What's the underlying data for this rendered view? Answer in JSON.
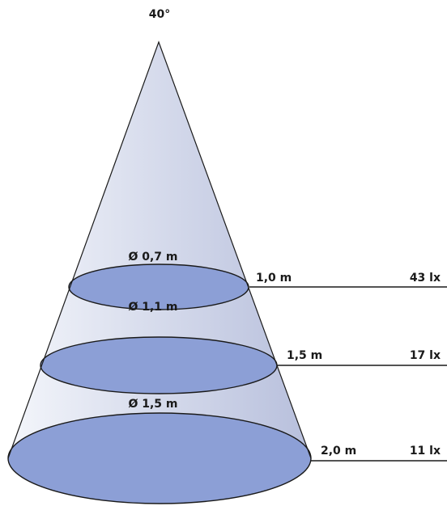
{
  "beam_angle": "40°",
  "colors": {
    "cone_light": "#f4f6fb",
    "cone_dark": "#b7bfdc",
    "ellipse_fill": "#8c9fd6",
    "stroke": "#1a1a1a"
  },
  "levels": [
    {
      "diameter": "Ø 0,7 m",
      "distance": "1,0 m",
      "illuminance": "43 lx"
    },
    {
      "diameter": "Ø 1,1 m",
      "distance": "1,5 m",
      "illuminance": "17 lx"
    },
    {
      "diameter": "Ø 1,5 m",
      "distance": "2,0 m",
      "illuminance": "11 lx"
    }
  ]
}
